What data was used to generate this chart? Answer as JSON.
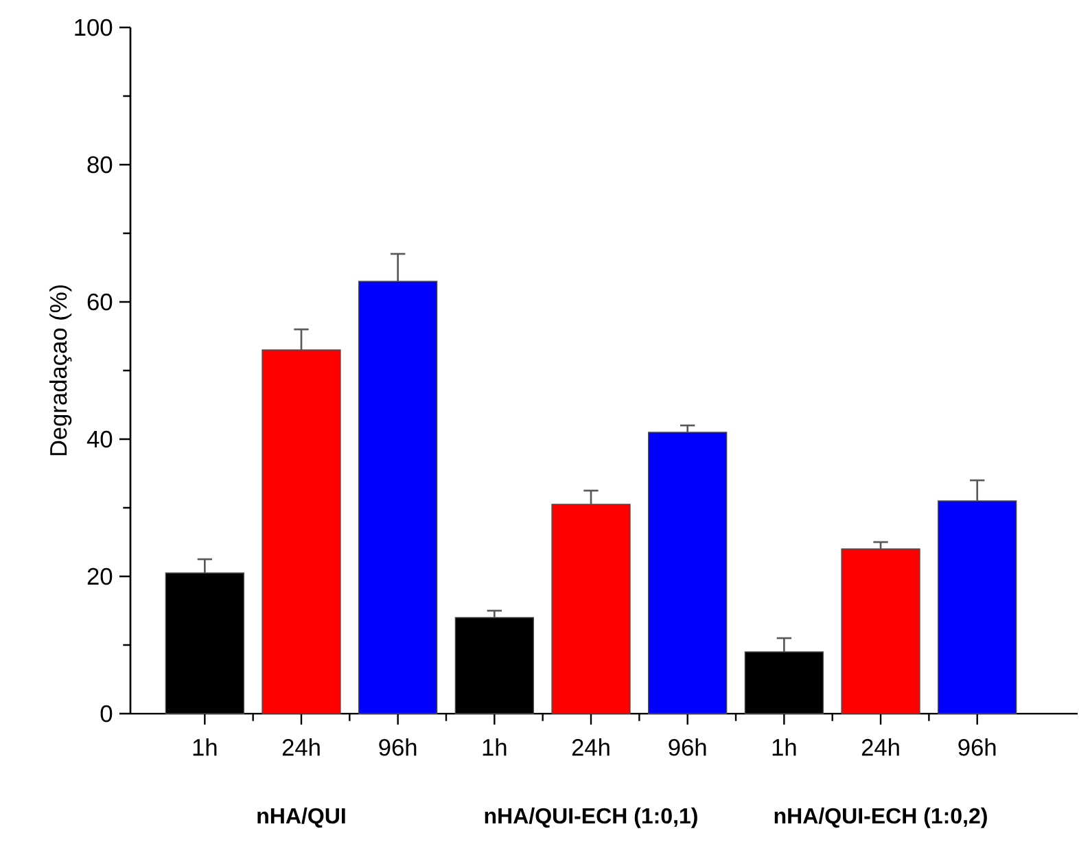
{
  "chart_data": {
    "type": "bar",
    "ylabel": "Degradaçao (%)",
    "categories": [
      "1h",
      "24h",
      "96h",
      "1h",
      "24h",
      "96h",
      "1h",
      "24h",
      "96h"
    ],
    "values": [
      20.5,
      53,
      63,
      14,
      30.5,
      41,
      9,
      24,
      31
    ],
    "colors": [
      "#000000",
      "#ff0000",
      "#0000ff",
      "#000000",
      "#ff0000",
      "#0000ff",
      "#000000",
      "#ff0000",
      "#0000ff"
    ],
    "errors": [
      [
        20.5,
        22.5
      ],
      [
        53,
        56
      ],
      [
        63,
        67
      ],
      [
        14,
        15
      ],
      [
        30.5,
        32.5
      ],
      [
        41,
        42
      ],
      [
        9,
        11
      ],
      [
        24,
        25
      ],
      [
        31,
        34
      ]
    ],
    "ylim": [
      0,
      100
    ],
    "yticks": [
      0,
      20,
      40,
      60,
      80,
      100
    ],
    "annotations": [
      "nHA/QUI",
      "nHA/QUI-ECH (1:0,1)",
      "nHA/QUI-ECH (1:0,2)"
    ]
  }
}
